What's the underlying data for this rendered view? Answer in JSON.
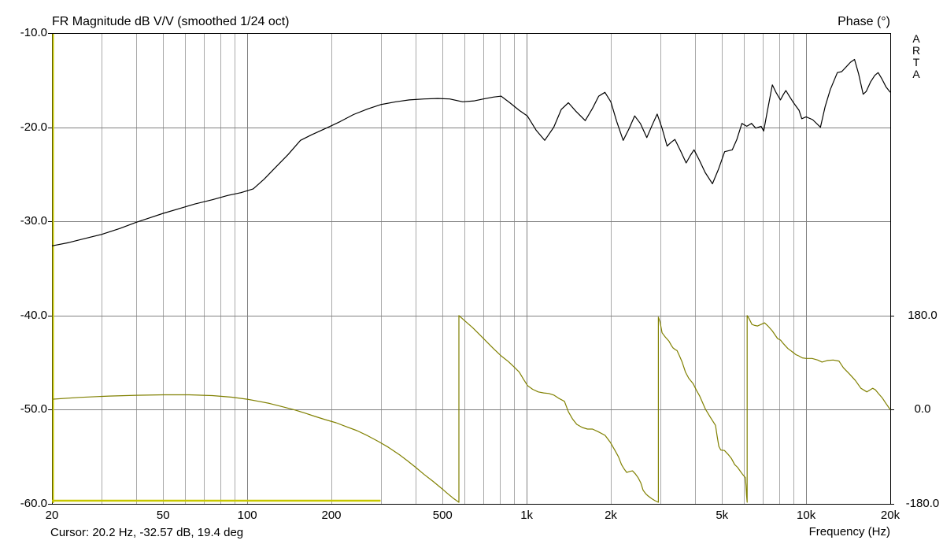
{
  "header": {
    "title": "FR Magnitude dB V/V (smoothed 1/24 oct)",
    "right_title": "Phase (°)"
  },
  "watermark": {
    "letters": [
      "A",
      "R",
      "T",
      "A"
    ]
  },
  "footer": {
    "cursor_readout": "Cursor: 20.2 Hz, -32.57 dB, 19.4 deg",
    "x_axis_label": "Frequency (Hz)"
  },
  "colors": {
    "background": "#ffffff",
    "border": "#000000",
    "grid_minor": "#a9a9a9",
    "grid_major": "#808080",
    "magnitude_curve": "#000000",
    "phase_curve": "#808000",
    "cursor": "#c8c800",
    "text": "#000000"
  },
  "chart_data": {
    "type": "line",
    "title": "FR Magnitude dB V/V (smoothed 1/24 oct)",
    "x_axis": {
      "label": "Frequency (Hz)",
      "scale": "log",
      "min_hz": 20,
      "max_hz": 20000,
      "tick_values": [
        20,
        50,
        100,
        200,
        500,
        1000,
        2000,
        5000,
        10000,
        20000
      ],
      "tick_labels": [
        "20",
        "50",
        "100",
        "200",
        "500",
        "1k",
        "2k",
        "5k",
        "10k",
        "20k"
      ],
      "gridlines_minor": [
        30,
        40,
        50,
        60,
        70,
        80,
        90,
        200,
        300,
        400,
        500,
        600,
        700,
        800,
        900,
        2000,
        3000,
        4000,
        5000,
        6000,
        7000,
        8000,
        9000
      ],
      "gridlines_major": [
        100,
        1000,
        10000
      ]
    },
    "y_left": {
      "label": "FR Magnitude dB V/V",
      "min": -60,
      "max": -10,
      "tick_values": [
        -10,
        -20,
        -30,
        -40,
        -50,
        -60
      ],
      "tick_labels": [
        "-10.0",
        "-20.0",
        "-30.0",
        "-40.0",
        "-50.0",
        "-60.0"
      ],
      "gridline_values": [
        -20,
        -30,
        -40,
        -50
      ]
    },
    "y_right": {
      "label": "Phase (°)",
      "min": -180,
      "max": 180,
      "tick_values": [
        180,
        0,
        -180
      ],
      "tick_labels": [
        "180.0",
        "0.0",
        "-180.0"
      ],
      "note": "phase scale occupies lower part of plot: +180 deg aligns with -40 dB gridline, -180 deg with -60 dB bottom border"
    },
    "cursor": {
      "freq_hz": 20.2,
      "magnitude_db": -32.57,
      "phase_deg": 19.4,
      "color": "#c8c800"
    },
    "series": [
      {
        "name": "magnitude",
        "axis": "left",
        "color": "#000000",
        "width": 1.2,
        "points": [
          [
            20,
            -32.6
          ],
          [
            23,
            -32.25
          ],
          [
            26,
            -31.85
          ],
          [
            30,
            -31.4
          ],
          [
            35,
            -30.75
          ],
          [
            40,
            -30.1
          ],
          [
            45,
            -29.6
          ],
          [
            50,
            -29.15
          ],
          [
            57,
            -28.65
          ],
          [
            65,
            -28.15
          ],
          [
            75,
            -27.7
          ],
          [
            85,
            -27.25
          ],
          [
            95,
            -26.95
          ],
          [
            105,
            -26.55
          ],
          [
            115,
            -25.5
          ],
          [
            125,
            -24.4
          ],
          [
            140,
            -22.9
          ],
          [
            155,
            -21.4
          ],
          [
            170,
            -20.8
          ],
          [
            195,
            -20.0
          ],
          [
            215,
            -19.4
          ],
          [
            240,
            -18.65
          ],
          [
            270,
            -18.05
          ],
          [
            300,
            -17.6
          ],
          [
            340,
            -17.3
          ],
          [
            380,
            -17.1
          ],
          [
            430,
            -17.0
          ],
          [
            480,
            -16.95
          ],
          [
            530,
            -17.0
          ],
          [
            590,
            -17.3
          ],
          [
            650,
            -17.2
          ],
          [
            700,
            -17.0
          ],
          [
            760,
            -16.8
          ],
          [
            810,
            -16.7
          ],
          [
            870,
            -17.4
          ],
          [
            940,
            -18.2
          ],
          [
            1005,
            -18.8
          ],
          [
            1080,
            -20.3
          ],
          [
            1160,
            -21.4
          ],
          [
            1250,
            -20.0
          ],
          [
            1330,
            -18.1
          ],
          [
            1410,
            -17.4
          ],
          [
            1500,
            -18.3
          ],
          [
            1620,
            -19.3
          ],
          [
            1720,
            -18.0
          ],
          [
            1810,
            -16.7
          ],
          [
            1905,
            -16.3
          ],
          [
            2000,
            -17.3
          ],
          [
            2100,
            -19.4
          ],
          [
            2215,
            -21.4
          ],
          [
            2320,
            -20.2
          ],
          [
            2435,
            -18.8
          ],
          [
            2550,
            -19.6
          ],
          [
            2690,
            -21.1
          ],
          [
            2810,
            -19.8
          ],
          [
            2930,
            -18.6
          ],
          [
            3050,
            -20.1
          ],
          [
            3180,
            -22.0
          ],
          [
            3290,
            -21.6
          ],
          [
            3390,
            -21.3
          ],
          [
            3550,
            -22.5
          ],
          [
            3720,
            -23.8
          ],
          [
            3850,
            -23.0
          ],
          [
            3970,
            -22.4
          ],
          [
            4150,
            -23.5
          ],
          [
            4350,
            -24.8
          ],
          [
            4620,
            -26.0
          ],
          [
            4850,
            -24.5
          ],
          [
            5110,
            -22.6
          ],
          [
            5440,
            -22.4
          ],
          [
            5650,
            -21.3
          ],
          [
            5890,
            -19.6
          ],
          [
            6130,
            -19.9
          ],
          [
            6380,
            -19.6
          ],
          [
            6600,
            -20.1
          ],
          [
            6900,
            -19.9
          ],
          [
            7050,
            -20.4
          ],
          [
            7250,
            -18.4
          ],
          [
            7570,
            -15.5
          ],
          [
            7800,
            -16.3
          ],
          [
            8090,
            -17.1
          ],
          [
            8300,
            -16.5
          ],
          [
            8460,
            -16.1
          ],
          [
            8700,
            -16.7
          ],
          [
            9010,
            -17.4
          ],
          [
            9430,
            -18.2
          ],
          [
            9650,
            -19.1
          ],
          [
            10000,
            -18.9
          ],
          [
            10550,
            -19.2
          ],
          [
            11250,
            -20.0
          ],
          [
            11700,
            -17.8
          ],
          [
            12200,
            -16.0
          ],
          [
            12930,
            -14.2
          ],
          [
            13400,
            -14.1
          ],
          [
            13900,
            -13.6
          ],
          [
            14400,
            -13.1
          ],
          [
            14900,
            -12.8
          ],
          [
            15400,
            -14.3
          ],
          [
            16000,
            -16.5
          ],
          [
            16400,
            -16.2
          ],
          [
            17000,
            -15.2
          ],
          [
            17600,
            -14.5
          ],
          [
            18100,
            -14.2
          ],
          [
            18700,
            -14.9
          ],
          [
            19300,
            -15.7
          ],
          [
            20000,
            -16.3
          ]
        ]
      },
      {
        "name": "phase",
        "axis": "right",
        "color": "#808000",
        "width": 1.2,
        "points": [
          [
            20,
            20
          ],
          [
            25,
            23.5
          ],
          [
            32,
            26
          ],
          [
            40,
            27.5
          ],
          [
            50,
            28.5
          ],
          [
            62,
            28.5
          ],
          [
            75,
            27
          ],
          [
            88,
            24
          ],
          [
            100,
            20
          ],
          [
            110,
            16
          ],
          [
            120,
            12
          ],
          [
            133,
            6
          ],
          [
            147,
            0
          ],
          [
            160,
            -6
          ],
          [
            175,
            -13
          ],
          [
            190,
            -19
          ],
          [
            208,
            -25
          ],
          [
            225,
            -32
          ],
          [
            247,
            -40
          ],
          [
            270,
            -50
          ],
          [
            295,
            -61
          ],
          [
            320,
            -72
          ],
          [
            350,
            -86
          ],
          [
            375,
            -98
          ],
          [
            400,
            -110
          ],
          [
            430,
            -124
          ],
          [
            462,
            -137
          ],
          [
            495,
            -150
          ],
          [
            520,
            -160
          ],
          [
            545,
            -169
          ],
          [
            572,
            -177
          ],
          [
            572,
            180
          ],
          [
            600,
            170
          ],
          [
            640,
            157
          ],
          [
            680,
            143
          ],
          [
            716,
            131
          ],
          [
            760,
            117
          ],
          [
            810,
            103
          ],
          [
            860,
            92
          ],
          [
            900,
            82
          ],
          [
            940,
            72
          ],
          [
            975,
            58
          ],
          [
            1007,
            46
          ],
          [
            1050,
            39
          ],
          [
            1100,
            34
          ],
          [
            1150,
            32
          ],
          [
            1200,
            31
          ],
          [
            1250,
            28
          ],
          [
            1300,
            22
          ],
          [
            1365,
            16
          ],
          [
            1410,
            -4
          ],
          [
            1460,
            -18
          ],
          [
            1510,
            -28
          ],
          [
            1580,
            -34
          ],
          [
            1650,
            -37
          ],
          [
            1720,
            -37
          ],
          [
            1800,
            -42
          ],
          [
            1907,
            -49
          ],
          [
            1990,
            -62
          ],
          [
            2070,
            -78
          ],
          [
            2130,
            -90
          ],
          [
            2185,
            -105
          ],
          [
            2230,
            -113
          ],
          [
            2280,
            -120
          ],
          [
            2340,
            -118
          ],
          [
            2390,
            -117
          ],
          [
            2450,
            -123
          ],
          [
            2505,
            -130
          ],
          [
            2560,
            -140
          ],
          [
            2610,
            -154
          ],
          [
            2670,
            -161
          ],
          [
            2720,
            -165
          ],
          [
            2800,
            -170
          ],
          [
            2880,
            -174
          ],
          [
            2960,
            -177
          ],
          [
            2960,
            177
          ],
          [
            3000,
            168
          ],
          [
            3050,
            147
          ],
          [
            3130,
            139
          ],
          [
            3230,
            131
          ],
          [
            3300,
            122
          ],
          [
            3340,
            118
          ],
          [
            3400,
            115
          ],
          [
            3450,
            113
          ],
          [
            3520,
            103
          ],
          [
            3600,
            91
          ],
          [
            3700,
            72
          ],
          [
            3800,
            60
          ],
          [
            3940,
            50
          ],
          [
            4050,
            37
          ],
          [
            4160,
            26
          ],
          [
            4360,
            1
          ],
          [
            4550,
            -15
          ],
          [
            4740,
            -30
          ],
          [
            4800,
            -50
          ],
          [
            4870,
            -70
          ],
          [
            4950,
            -77
          ],
          [
            5100,
            -78
          ],
          [
            5250,
            -85
          ],
          [
            5400,
            -93
          ],
          [
            5550,
            -105
          ],
          [
            5680,
            -110
          ],
          [
            5800,
            -117
          ],
          [
            5930,
            -124
          ],
          [
            6060,
            -130
          ],
          [
            6090,
            -145
          ],
          [
            6120,
            -163
          ],
          [
            6150,
            -177
          ],
          [
            6150,
            180
          ],
          [
            6250,
            174
          ],
          [
            6400,
            163
          ],
          [
            6550,
            161
          ],
          [
            6700,
            160
          ],
          [
            6900,
            163
          ],
          [
            7100,
            166
          ],
          [
            7300,
            160
          ],
          [
            7560,
            151
          ],
          [
            7900,
            136
          ],
          [
            8100,
            133
          ],
          [
            8300,
            126
          ],
          [
            8600,
            117
          ],
          [
            8900,
            111
          ],
          [
            9200,
            105
          ],
          [
            9400,
            103
          ],
          [
            9700,
            99
          ],
          [
            10000,
            98
          ],
          [
            10500,
            98
          ],
          [
            11000,
            95
          ],
          [
            11400,
            91
          ],
          [
            11900,
            94
          ],
          [
            12500,
            95
          ],
          [
            13100,
            93
          ],
          [
            13600,
            80
          ],
          [
            14300,
            68
          ],
          [
            15000,
            56
          ],
          [
            15700,
            41
          ],
          [
            16500,
            34
          ],
          [
            17300,
            41
          ],
          [
            17700,
            38
          ],
          [
            18200,
            30
          ],
          [
            18700,
            23
          ],
          [
            19300,
            12
          ],
          [
            20000,
            0
          ]
        ]
      },
      {
        "name": "flat-yellow-line",
        "axis": "right",
        "color": "#c8c800",
        "width": 2.5,
        "points": [
          [
            20,
            -174
          ],
          [
            300,
            -174
          ]
        ]
      }
    ]
  }
}
